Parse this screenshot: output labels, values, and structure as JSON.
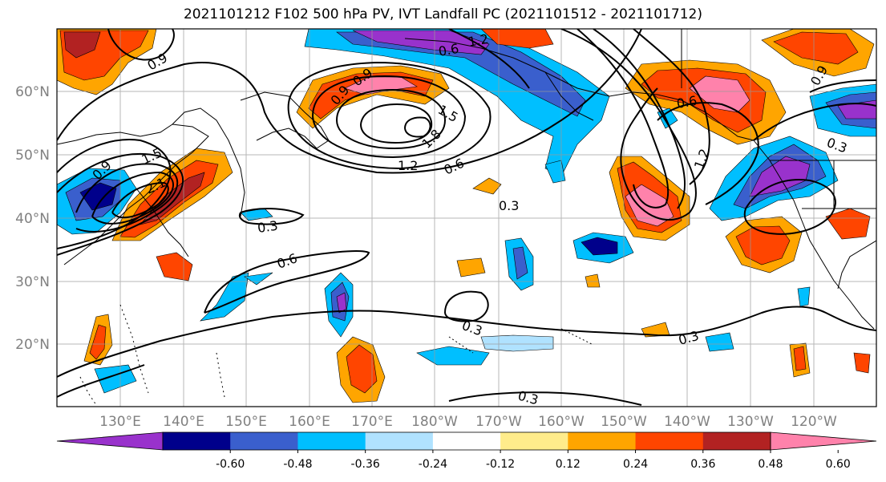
{
  "title": "2021101212 F102 500 hPa PV, IVT Landfall PC (2021101512 - 2021101712)",
  "x_ticks": [
    "130°E",
    "140°E",
    "150°E",
    "160°E",
    "170°E",
    "180°W",
    "170°W",
    "160°W",
    "150°W",
    "140°W",
    "130°W",
    "120°W"
  ],
  "y_ticks": [
    "60°N",
    "50°N",
    "40°N",
    "30°N",
    "20°N"
  ],
  "contour_labels": [
    "0.9",
    "1.2",
    "0.6",
    "0.9",
    "1.5",
    "0.9",
    "1.8",
    "1.2",
    "0.6",
    "0.6",
    "1.2",
    "0.9",
    "0.9",
    "1.5",
    "2.1",
    "0.3",
    "0.3",
    "0.6",
    "0.3",
    "0.3",
    "0.3",
    "0.3"
  ],
  "colorbar": {
    "colors": [
      "#9932CC",
      "#00008B",
      "#3A5FCD",
      "#00BFFF",
      "#B0E2FF",
      "#FFFFFF",
      "#FFEC8B",
      "#FFA500",
      "#FF4500",
      "#B22222",
      "#FF82AB"
    ],
    "tick_labels": [
      "-0.60",
      "-0.48",
      "-0.36",
      "-0.24",
      "-0.12",
      "0.12",
      "0.24",
      "0.36",
      "0.48",
      "0.60"
    ]
  }
}
